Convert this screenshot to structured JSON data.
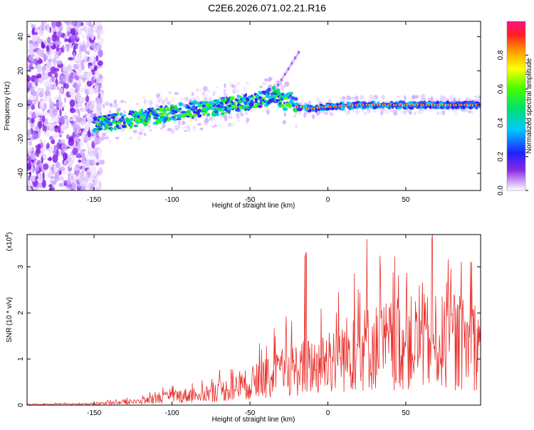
{
  "title": "C2E6.2026.071.02.21.R16",
  "chart_data": [
    {
      "type": "heatmap",
      "panel": "spectrogram",
      "xlabel": "Height of straight line (km)",
      "ylabel": "Frequency (Hz)",
      "xlim": [
        -193,
        98
      ],
      "ylim": [
        -50,
        49
      ],
      "xticks": [
        -150,
        -100,
        -50,
        0,
        50
      ],
      "yticks": [
        -40,
        -20,
        0,
        20,
        40
      ],
      "ridge": {
        "x": [
          -150,
          -130,
          -110,
          -90,
          -70,
          -50,
          -40,
          -33,
          -28,
          -25,
          -20,
          -10,
          0,
          20,
          40,
          60,
          80,
          98
        ],
        "frequency_hz": [
          -11,
          -9,
          -6,
          -3,
          -1,
          2,
          4,
          6,
          1,
          4,
          -1,
          -2,
          -1,
          0,
          0,
          0,
          0,
          0
        ]
      },
      "colorbar": {
        "label": "Normalized spectral amplitude",
        "range": [
          0.0,
          1.0
        ],
        "ticks": [
          "0.0",
          "0.2",
          "0.4",
          "0.6",
          "0.8"
        ]
      }
    },
    {
      "type": "line",
      "panel": "snr",
      "xlabel": "Height of straight line (km)",
      "ylabel": "SNR (10 * v/v)",
      "y_scale_label": "(x10",
      "y_scale_exp": "4",
      "y_scale_close": ")",
      "xlim": [
        -193,
        98
      ],
      "ylim": [
        0,
        3.7
      ],
      "xticks": [
        -150,
        -100,
        -50,
        0,
        50
      ],
      "yticks": [
        0,
        1,
        2,
        3
      ],
      "color": "#e8302c",
      "envelope": {
        "x": [
          -193,
          -150,
          -120,
          -100,
          -80,
          -60,
          -45,
          -35,
          -25,
          -15,
          -5,
          5,
          15,
          25,
          40,
          60,
          80,
          98
        ],
        "y": [
          0.02,
          0.04,
          0.12,
          0.28,
          0.38,
          0.55,
          0.8,
          0.95,
          1.15,
          1.25,
          1.35,
          1.6,
          1.75,
          1.9,
          2.0,
          2.1,
          2.05,
          2.05
        ]
      },
      "peaks": [
        {
          "x": -15,
          "y": 3.25
        },
        {
          "x": -14,
          "y": 3.3
        },
        {
          "x": 25,
          "y": 3.6
        },
        {
          "x": 67,
          "y": 3.7
        }
      ]
    }
  ]
}
